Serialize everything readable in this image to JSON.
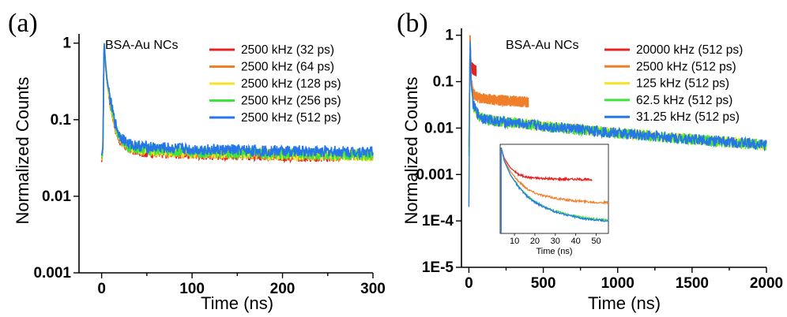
{
  "chart_data": [
    {
      "panel": "(a)",
      "type": "line",
      "sample": "BSA-Au NCs",
      "xlabel": "Time (ns)",
      "ylabel": "Normalized Counts",
      "yscale": "log",
      "xlim": [
        -25,
        300
      ],
      "ylim": [
        0.001,
        1.2
      ],
      "xticks": [
        0,
        100,
        200,
        300
      ],
      "yticks": [
        {
          "value": 1,
          "label": "1"
        },
        {
          "value": 0.1,
          "label": "0.1"
        },
        {
          "value": 0.01,
          "label": "0.01"
        },
        {
          "value": 0.001,
          "label": "0.001"
        }
      ],
      "grid": false,
      "legend_position": "top-right",
      "series": [
        {
          "name": "2500 kHz (32 ps)",
          "color": "#e8211f",
          "x": [
            0,
            1.5,
            2.5,
            3,
            4,
            6,
            10,
            15,
            20,
            30,
            50,
            100,
            150,
            200,
            260
          ],
          "y": [
            0.028,
            0.04,
            0.7,
            0.9,
            0.55,
            0.3,
            0.15,
            0.08,
            0.055,
            0.042,
            0.038,
            0.036,
            0.035,
            0.034,
            0.033
          ],
          "x_end": 260
        },
        {
          "name": "2500 kHz (64 ps)",
          "color": "#f07f2a",
          "x": [
            0,
            1.5,
            2.5,
            3,
            4,
            6,
            10,
            15,
            20,
            30,
            50,
            100,
            150,
            200,
            300
          ],
          "y": [
            0.029,
            0.04,
            0.7,
            0.9,
            0.56,
            0.31,
            0.15,
            0.08,
            0.056,
            0.043,
            0.039,
            0.037,
            0.036,
            0.035,
            0.034
          ]
        },
        {
          "name": "2500 kHz (128 ps)",
          "color": "#f3e524",
          "x": [
            0,
            1.5,
            2.5,
            3,
            4,
            6,
            10,
            15,
            20,
            30,
            50,
            100,
            150,
            200,
            300
          ],
          "y": [
            0.03,
            0.041,
            0.72,
            0.92,
            0.57,
            0.31,
            0.155,
            0.082,
            0.057,
            0.044,
            0.04,
            0.037,
            0.036,
            0.035,
            0.034
          ]
        },
        {
          "name": "2500 kHz (256 ps)",
          "color": "#3fe43a",
          "x": [
            0,
            1.5,
            2.5,
            3,
            4,
            6,
            10,
            15,
            20,
            30,
            50,
            100,
            150,
            200,
            300
          ],
          "y": [
            0.031,
            0.042,
            0.75,
            0.95,
            0.58,
            0.32,
            0.16,
            0.084,
            0.058,
            0.045,
            0.041,
            0.038,
            0.037,
            0.036,
            0.035
          ]
        },
        {
          "name": "2500 kHz (512 ps)",
          "color": "#2676e9",
          "x": [
            0,
            1.5,
            2.5,
            3,
            4,
            6,
            10,
            15,
            20,
            30,
            50,
            100,
            150,
            200,
            300
          ],
          "y": [
            0.034,
            0.045,
            0.8,
            1.0,
            0.62,
            0.34,
            0.17,
            0.09,
            0.062,
            0.048,
            0.044,
            0.041,
            0.04,
            0.039,
            0.038
          ]
        }
      ]
    },
    {
      "panel": "(b)",
      "type": "line",
      "sample": "BSA-Au NCs",
      "xlabel": "Time (ns)",
      "ylabel": "Normalized Counts",
      "yscale": "log",
      "xlim": [
        -50,
        2000
      ],
      "ylim": [
        1e-05,
        1.2
      ],
      "xticks": [
        0,
        500,
        1000,
        1500,
        2000
      ],
      "yticks": [
        {
          "value": 1,
          "label": "1"
        },
        {
          "value": 0.1,
          "label": "0.1"
        },
        {
          "value": 0.01,
          "label": "0.01"
        },
        {
          "value": 0.001,
          "label": "0.001"
        },
        {
          "value": 0.0001,
          "label": "1E-4"
        },
        {
          "value": 1e-05,
          "label": "1E-5"
        }
      ],
      "grid": false,
      "legend_position": "top-right",
      "series": [
        {
          "name": "20000 kHz (512 ps)",
          "color": "#e8211f",
          "x": [
            0,
            8,
            15,
            25,
            35,
            48
          ],
          "y": [
            0.004,
            1.0,
            0.22,
            0.19,
            0.18,
            0.17
          ]
        },
        {
          "name": "2500 kHz (512 ps)",
          "color": "#f07f2a",
          "x": [
            0,
            8,
            15,
            30,
            60,
            100,
            200,
            300,
            400
          ],
          "y": [
            0.004,
            1.0,
            0.12,
            0.055,
            0.046,
            0.043,
            0.04,
            0.038,
            0.036
          ]
        },
        {
          "name": "125 kHz (512 ps)",
          "color": "#f3e524",
          "x": [
            0,
            8,
            15,
            30,
            60,
            100,
            200,
            500,
            1000,
            1500,
            2000
          ],
          "y": [
            0.003,
            1.0,
            0.09,
            0.03,
            0.019,
            0.016,
            0.014,
            0.011,
            0.0078,
            0.0058,
            0.0043
          ]
        },
        {
          "name": "62.5 kHz (512 ps)",
          "color": "#3fe43a",
          "x": [
            0,
            8,
            15,
            30,
            60,
            100,
            200,
            500,
            1000,
            1500,
            2000
          ],
          "y": [
            0.0025,
            1.0,
            0.09,
            0.03,
            0.019,
            0.016,
            0.014,
            0.011,
            0.0077,
            0.0057,
            0.0042
          ]
        },
        {
          "name": "31.25 kHz (512 ps)",
          "color": "#2676e9",
          "x": [
            0,
            8,
            15,
            30,
            60,
            100,
            200,
            500,
            1000,
            1500,
            2000
          ],
          "y": [
            0.0002,
            1.0,
            0.09,
            0.031,
            0.02,
            0.016,
            0.014,
            0.011,
            0.0078,
            0.0058,
            0.0044
          ]
        }
      ],
      "inset": {
        "xlabel": "Time (ns)",
        "yscale": "log",
        "xlim": [
          3,
          56
        ],
        "ylim": [
          0.008,
          1.2
        ],
        "xticks": [
          10,
          20,
          30,
          40,
          50
        ],
        "series": [
          {
            "color": "#e8211f",
            "x": [
              3.5,
              5,
              8,
              12,
              16,
              20,
              25,
              30,
              35,
              40,
              45,
              48
            ],
            "y": [
              1.0,
              0.55,
              0.32,
              0.22,
              0.19,
              0.18,
              0.175,
              0.17,
              0.17,
              0.168,
              0.165,
              0.165
            ]
          },
          {
            "color": "#f07f2a",
            "x": [
              3.5,
              5,
              8,
              12,
              16,
              20,
              25,
              30,
              35,
              40,
              45,
              50,
              56
            ],
            "y": [
              1.0,
              0.5,
              0.26,
              0.15,
              0.1,
              0.078,
              0.065,
              0.058,
              0.053,
              0.05,
              0.048,
              0.046,
              0.045
            ]
          },
          {
            "color": "#3fe43a",
            "x": [
              3.5,
              5,
              8,
              12,
              16,
              20,
              25,
              30,
              35,
              40,
              45,
              50,
              56
            ],
            "y": [
              1.0,
              0.48,
              0.22,
              0.11,
              0.067,
              0.047,
              0.035,
              0.028,
              0.024,
              0.021,
              0.019,
              0.018,
              0.017
            ]
          },
          {
            "color": "#2676e9",
            "x": [
              3.5,
              5,
              8,
              12,
              16,
              20,
              25,
              30,
              35,
              40,
              45,
              50,
              56
            ],
            "y": [
              1.0,
              0.47,
              0.215,
              0.108,
              0.066,
              0.046,
              0.034,
              0.027,
              0.023,
              0.02,
              0.018,
              0.017,
              0.016
            ]
          }
        ]
      }
    }
  ]
}
